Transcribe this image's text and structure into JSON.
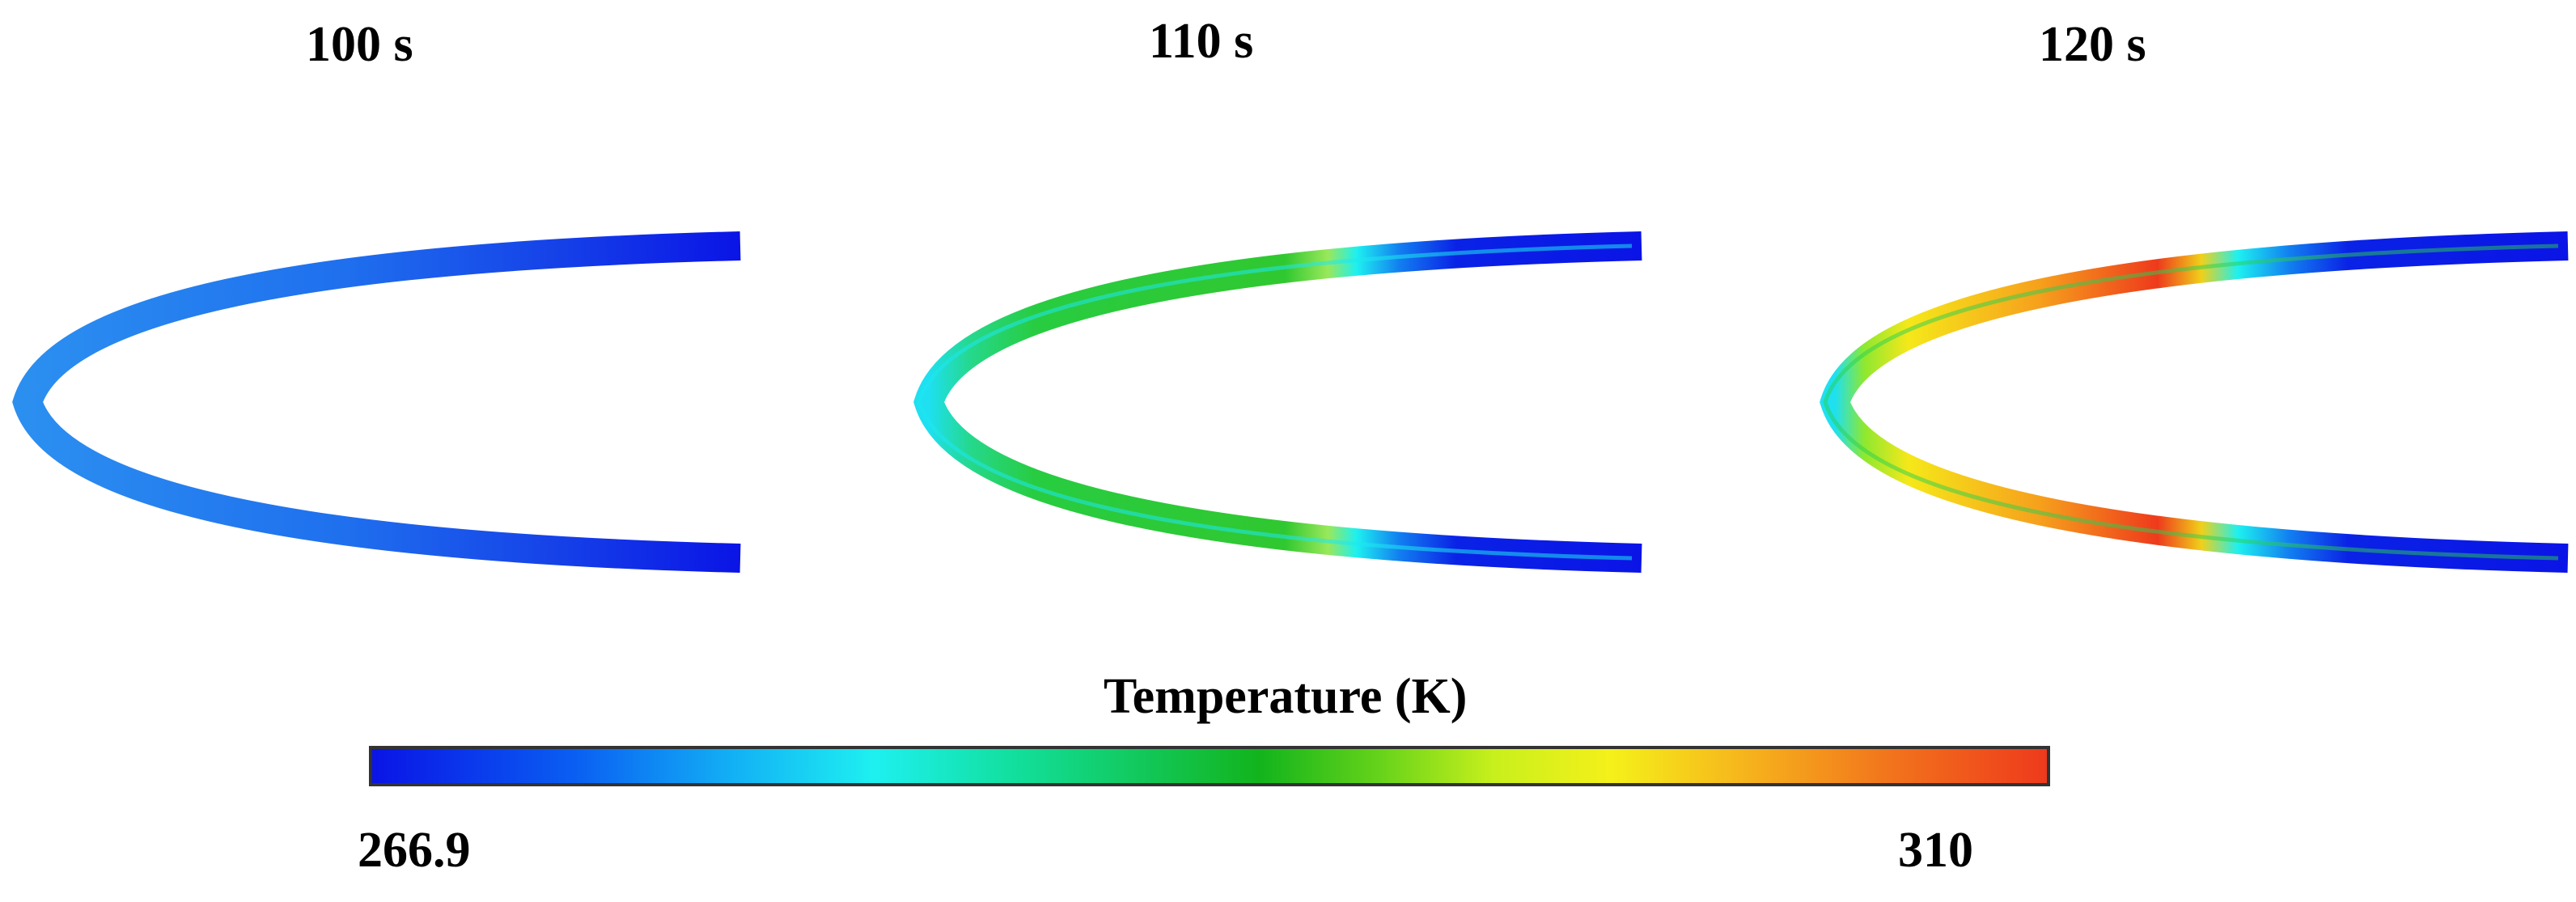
{
  "panels": [
    {
      "time_label": "100 s"
    },
    {
      "time_label": "110 s"
    },
    {
      "time_label": "120 s"
    }
  ],
  "colorbar": {
    "title": "Temperature (K)",
    "min_label": "266.9",
    "max_label": "310",
    "colors": [
      "#0a14e6",
      "#0a5ef2",
      "#13b4f5",
      "#1ef0f0",
      "#12e0a0",
      "#12c85a",
      "#12b41c",
      "#64d21a",
      "#c8f01c",
      "#f5f01a",
      "#f6b41c",
      "#f2781c",
      "#ee3a1c"
    ]
  },
  "colors": {
    "cold_blue": "#0a14e6",
    "cool_blue": "#2b7fee",
    "cyan": "#1ef0f0",
    "green": "#12c85a",
    "yellow": "#f5f01a",
    "red": "#ee3a1c"
  }
}
